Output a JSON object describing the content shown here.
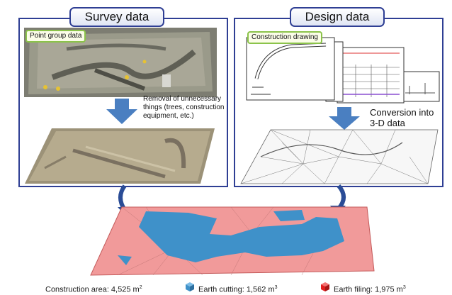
{
  "panels": {
    "survey": {
      "title": "Survey data",
      "tag": "Point group data",
      "note": "Removal of unnecessary things (trees, construction equipment, etc.)"
    },
    "design": {
      "title": "Design data",
      "tag": "Construction drawing",
      "note": "Conversion into 3-D data"
    }
  },
  "footer": {
    "area_label": "Construction area: 4,525 m",
    "area_exp": "2",
    "cutting_label": "Earth cutting: 1,562 m",
    "cutting_exp": "3",
    "filling_label": "Earth filing: 1,975 m",
    "filling_exp": "3"
  },
  "colors": {
    "frame": "#2f3f94",
    "tag_border": "#8bc34a",
    "arrow": "#4a7fc1",
    "cut": "#3f91c9",
    "fill": "#e21e1e",
    "model_base": "#f19a9a"
  }
}
